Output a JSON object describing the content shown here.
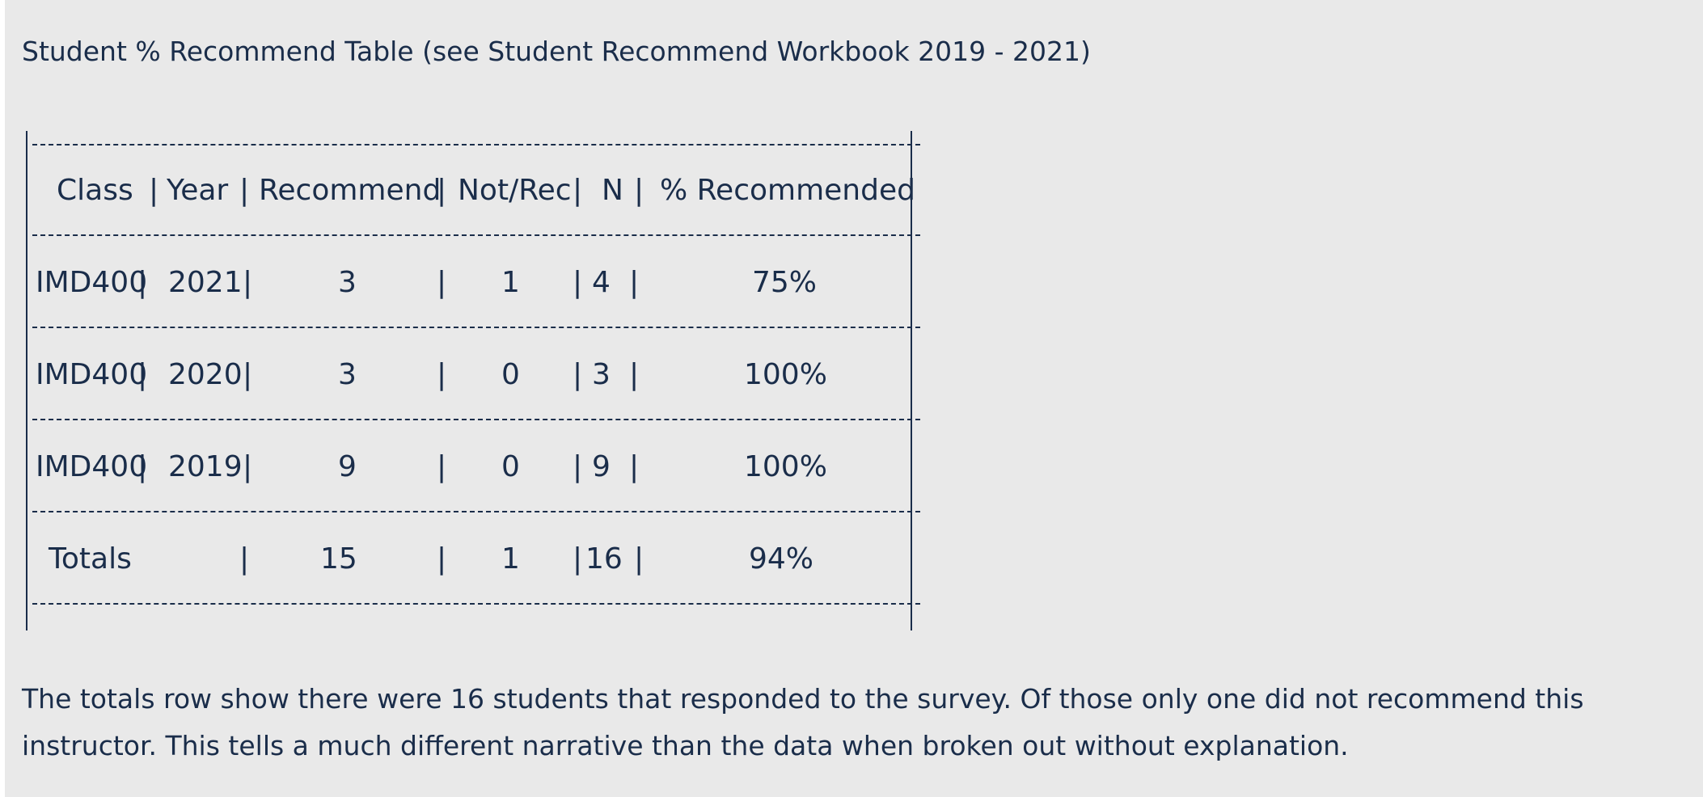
{
  "title": "Student % Recommend Table (see Student Recommend Workbook 2019 - 2021)",
  "table": {
    "headers": [
      "Class",
      "Year",
      "Recommend",
      "Not/Rec",
      "N",
      "% Recommended"
    ],
    "rows": [
      {
        "class": "IMD400",
        "year": "2021",
        "recommend": "3",
        "not_rec": "1",
        "n": "4",
        "pct": "75%"
      },
      {
        "class": "IMD400",
        "year": "2020",
        "recommend": "3",
        "not_rec": "0",
        "n": "3",
        "pct": "100%"
      },
      {
        "class": "IMD400",
        "year": "2019",
        "recommend": "9",
        "not_rec": "0",
        "n": "9",
        "pct": "100%"
      }
    ],
    "totals": {
      "label": "Totals",
      "recommend": "15",
      "not_rec": "1",
      "n": "16",
      "pct": "94%"
    }
  },
  "paragraph": "The totals row show there were 16 students that responded to the survey. Of those only one did not recommend this instructor. This tells a much different narrative than the data when broken out without explanation."
}
